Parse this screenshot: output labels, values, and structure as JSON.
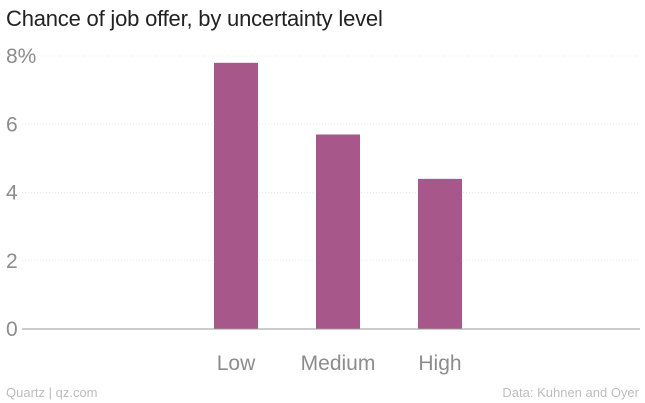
{
  "chart_data": {
    "type": "bar",
    "title": "Chance of job offer, by uncertainty level",
    "categories": [
      "Low",
      "Medium",
      "High"
    ],
    "values": [
      7.8,
      5.7,
      4.4
    ],
    "ylim": [
      0,
      8
    ],
    "yticks": [
      0,
      2,
      4,
      6,
      8
    ],
    "ytick_labels": [
      "0",
      "2",
      "4",
      "6",
      "8%"
    ],
    "xlabel": "",
    "ylabel": "",
    "grid": true,
    "bar_color": "#a8578a"
  },
  "footer": {
    "source_left": "Quartz | qz.com",
    "source_right": "Data: Kuhnen and Oyer"
  }
}
